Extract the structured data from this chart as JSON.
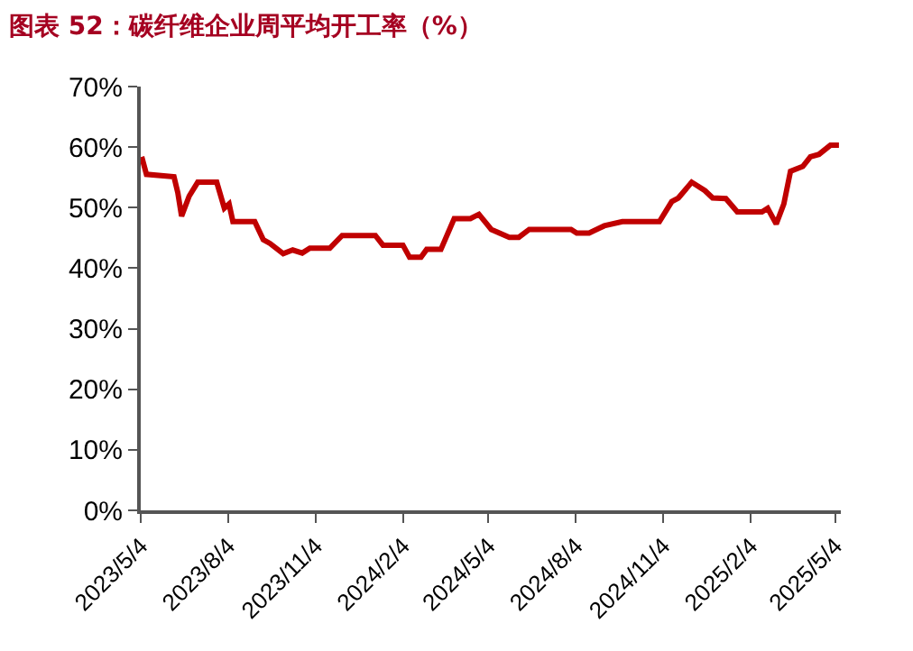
{
  "chart_data": {
    "type": "line",
    "title": "图表 52：碳纤维企业周平均开工率（%）",
    "x": [
      "2023-05-05",
      "2023-05-10",
      "2023-06-08",
      "2023-06-12",
      "2023-06-16",
      "2023-06-24",
      "2023-07-03",
      "2023-07-23",
      "2023-07-31",
      "2023-08-05",
      "2023-08-09",
      "2023-09-01",
      "2023-09-10",
      "2023-09-17",
      "2023-10-01",
      "2023-10-11",
      "2023-10-21",
      "2023-10-29",
      "2023-11-19",
      "2023-12-02",
      "2024-01-06",
      "2024-01-14",
      "2024-02-04",
      "2024-02-11",
      "2024-02-23",
      "2024-02-29",
      "2024-03-15",
      "2024-03-29",
      "2024-04-15",
      "2024-04-24",
      "2024-05-07",
      "2024-05-26",
      "2024-06-05",
      "2024-06-16",
      "2024-07-30",
      "2024-08-05",
      "2024-08-18",
      "2024-09-03",
      "2024-09-22",
      "2024-10-31",
      "2024-11-13",
      "2024-11-20",
      "2024-12-04",
      "2024-12-18",
      "2024-12-26",
      "2025-01-09",
      "2025-01-21",
      "2025-02-16",
      "2025-02-22",
      "2025-03-03",
      "2025-03-11",
      "2025-03-18",
      "2025-03-31",
      "2025-04-08",
      "2025-04-17",
      "2025-04-29",
      "2025-05-08"
    ],
    "series": [
      {
        "color": "#c00000",
        "values": [
          58.4,
          55.5,
          55.1,
          52.5,
          48.6,
          51.9,
          54.2,
          54.2,
          49.9,
          50.6,
          47.7,
          47.7,
          44.7,
          44.1,
          42.4,
          43.0,
          42.5,
          43.3,
          43.3,
          45.4,
          45.4,
          43.8,
          43.8,
          41.8,
          41.8,
          43.1,
          43.1,
          48.2,
          48.2,
          48.9,
          46.4,
          45.1,
          45.1,
          46.4,
          46.4,
          45.8,
          45.8,
          47.0,
          47.7,
          47.7,
          51.0,
          51.6,
          54.2,
          52.8,
          51.6,
          51.5,
          49.3,
          49.3,
          49.9,
          47.3,
          50.6,
          56.0,
          56.8,
          58.4,
          58.8,
          60.3,
          60.3
        ]
      }
    ],
    "xlim": [
      "2023-05-04",
      "2025-05-10"
    ],
    "xticks": [
      {
        "value": "2023-05-04",
        "label": "2023/5/4"
      },
      {
        "value": "2023-08-04",
        "label": "2023/8/4"
      },
      {
        "value": "2023-11-04",
        "label": "2023/11/4"
      },
      {
        "value": "2024-02-04",
        "label": "2024/2/4"
      },
      {
        "value": "2024-05-04",
        "label": "2024/5/4"
      },
      {
        "value": "2024-08-04",
        "label": "2024/8/4"
      },
      {
        "value": "2024-11-04",
        "label": "2024/11/4"
      },
      {
        "value": "2025-02-04",
        "label": "2025/2/4"
      },
      {
        "value": "2025-05-04",
        "label": "2025/5/4"
      }
    ],
    "ylim": [
      0,
      70
    ],
    "yticks": [
      {
        "value": 0,
        "label": "0%"
      },
      {
        "value": 10,
        "label": "10%"
      },
      {
        "value": 20,
        "label": "20%"
      },
      {
        "value": 30,
        "label": "30%"
      },
      {
        "value": 40,
        "label": "40%"
      },
      {
        "value": 50,
        "label": "50%"
      },
      {
        "value": 60,
        "label": "60%"
      },
      {
        "value": 70,
        "label": "70%"
      }
    ],
    "marker": "none",
    "line_style": "solid"
  }
}
